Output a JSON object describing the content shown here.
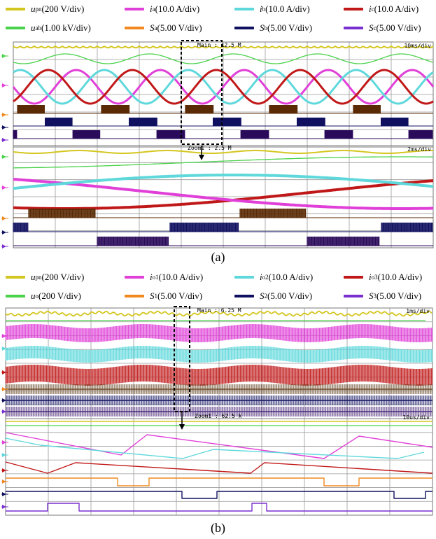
{
  "colors": {
    "upn": "#d4c61e",
    "ia": "#e040d8",
    "ib": "#5fd8dc",
    "ic": "#c01818",
    "uab": "#4ad24a",
    "sa": "#f08a20",
    "sb": "#101060",
    "sc": "#7a2fd0",
    "grid": "#9a9a9a",
    "background": "#ffffff"
  },
  "legend_a": [
    {
      "sym": "u",
      "sub": "pn",
      "unit": "(200 V/div)",
      "color_key": "upn"
    },
    {
      "sym": "i",
      "sub": "a",
      "unit": "(10.0 A/div)",
      "color_key": "ia"
    },
    {
      "sym": "i",
      "sub": "b",
      "unit": "(10.0 A/div)",
      "color_key": "ib"
    },
    {
      "sym": "i",
      "sub": "c",
      "unit": "(10.0 A/div)",
      "color_key": "ic"
    },
    {
      "sym": "u",
      "sub": "ab",
      "unit": "(1.00 kV/div)",
      "color_key": "uab"
    },
    {
      "sym": "S",
      "sub": "a",
      "unit": "(5.00 V/div)",
      "color_key": "sa"
    },
    {
      "sym": "S",
      "sub": "b",
      "unit": "(5.00 V/div)",
      "color_key": "sb"
    },
    {
      "sym": "S",
      "sub": "c",
      "unit": "(5.00 V/div)",
      "color_key": "sc"
    }
  ],
  "legend_b": [
    {
      "sym": "u",
      "sub": "pn",
      "unit": "(200 V/div)",
      "color_key": "upn"
    },
    {
      "sym": "i",
      "sub": "o1",
      "unit": "(10.0 A/div)",
      "color_key": "ia"
    },
    {
      "sym": "i",
      "sub": "o2",
      "unit": "(10.0 A/div)",
      "color_key": "ib"
    },
    {
      "sym": "i",
      "sub": "o3",
      "unit": "(10.0 A/div)",
      "color_key": "ic"
    },
    {
      "sym": "u",
      "sub": "o",
      "unit": "(200 V/div)",
      "color_key": "uab"
    },
    {
      "sym": "S",
      "sub": "1",
      "unit": "(5.00 V/div)",
      "color_key": "sa"
    },
    {
      "sym": "S",
      "sub": "2",
      "unit": "(5.00 V/div)",
      "color_key": "sb"
    },
    {
      "sym": "S",
      "sub": "3",
      "unit": "(5.00 V/div)",
      "color_key": "sc"
    }
  ],
  "panel_a": {
    "main_label": "Main : 12.5 M",
    "main_timebase": "10ms/div",
    "zoom_label": "Zoom1 : 2.5 M",
    "zoom_timebase": "2ms/div",
    "caption": "(a)"
  },
  "panel_b": {
    "main_label": "Main : 6.25 M",
    "main_timebase": "1ms/div",
    "zoom_label": "Zoom1 : 62.5 k",
    "zoom_timebase": "10us/div",
    "caption": "(b)"
  },
  "chart_data": [
    {
      "type": "line",
      "panel": "a-main",
      "timebase": "10ms/div",
      "grid_divisions": 10,
      "series": [
        {
          "name": "u_pn",
          "shape": "dc-with-6-pulse-ripple"
        },
        {
          "name": "i_a",
          "shape": "sine",
          "cycles_shown": 5
        },
        {
          "name": "i_b",
          "shape": "sine",
          "cycles_shown": 5
        },
        {
          "name": "i_c",
          "shape": "sine",
          "cycles_shown": 5
        },
        {
          "name": "u_ab",
          "shape": "sine",
          "cycles_shown": 5
        },
        {
          "name": "S_a",
          "shape": "pwm-bursts"
        },
        {
          "name": "S_b",
          "shape": "pwm-bursts"
        },
        {
          "name": "S_c",
          "shape": "pwm-bursts"
        }
      ]
    },
    {
      "type": "line",
      "panel": "a-zoom",
      "timebase": "2ms/div",
      "grid_divisions": 10,
      "series": [
        {
          "name": "u_pn",
          "shape": "dc-with-ripple"
        },
        {
          "name": "u_ab",
          "shape": "sine-segment"
        },
        {
          "name": "i_a",
          "shape": "sine-segment"
        },
        {
          "name": "i_b",
          "shape": "sine-segment"
        },
        {
          "name": "i_c",
          "shape": "sine-segment"
        },
        {
          "name": "S_a",
          "shape": "pwm-bursts"
        },
        {
          "name": "S_b",
          "shape": "pwm-bursts"
        },
        {
          "name": "S_c",
          "shape": "pwm-bursts"
        }
      ]
    },
    {
      "type": "line",
      "panel": "b-main",
      "timebase": "1ms/div",
      "grid_divisions": 10,
      "series": [
        {
          "name": "u_pn",
          "shape": "dc-with-ripple"
        },
        {
          "name": "u_o",
          "shape": "dc"
        },
        {
          "name": "i_o1",
          "shape": "dc-with-hf-ripple"
        },
        {
          "name": "i_o2",
          "shape": "dc-with-hf-ripple"
        },
        {
          "name": "i_o3",
          "shape": "dc-with-hf-ripple"
        },
        {
          "name": "S_1",
          "shape": "hf-pwm"
        },
        {
          "name": "S_2",
          "shape": "hf-pwm"
        },
        {
          "name": "S_3",
          "shape": "hf-pwm"
        }
      ]
    },
    {
      "type": "line",
      "panel": "b-zoom",
      "timebase": "10us/div",
      "grid_divisions": 10,
      "series": [
        {
          "name": "u_pn",
          "shape": "dc"
        },
        {
          "name": "u_o",
          "shape": "dc"
        },
        {
          "name": "i_o1",
          "shape": "sawtooth"
        },
        {
          "name": "i_o2",
          "shape": "sawtooth"
        },
        {
          "name": "i_o3",
          "shape": "sawtooth"
        },
        {
          "name": "S_1",
          "shape": "square"
        },
        {
          "name": "S_2",
          "shape": "square"
        },
        {
          "name": "S_3",
          "shape": "square"
        }
      ]
    }
  ]
}
